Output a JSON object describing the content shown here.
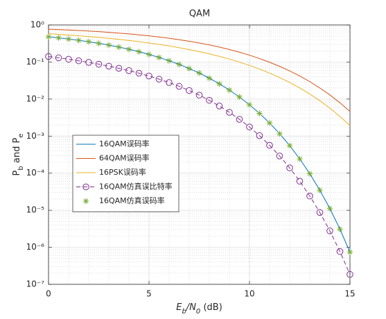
{
  "chart_data": {
    "type": "line",
    "title": "QAM",
    "xlabel": "Eb/N0 (dB)",
    "ylabel": "Pb and Pe",
    "log_y": true,
    "grid": true,
    "minor_grid": true,
    "legend": "west",
    "x": [
      0,
      0.5,
      1,
      1.5,
      2,
      2.5,
      3,
      3.5,
      4,
      4.5,
      5,
      5.5,
      6,
      6.5,
      7,
      7.5,
      8,
      8.5,
      9,
      9.5,
      10,
      10.5,
      11,
      11.5,
      12,
      12.5,
      13,
      13.5,
      14,
      14.5,
      15
    ],
    "xlim": [
      0,
      15
    ],
    "xticks": [
      0,
      5,
      10,
      15
    ],
    "ylim": [
      1e-07,
      1
    ],
    "yticks": [
      {
        "value": 1e-07,
        "label": "10⁻⁷"
      },
      {
        "value": 1e-06,
        "label": "10⁻⁶"
      },
      {
        "value": 1e-05,
        "label": "10⁻⁵"
      },
      {
        "value": 0.0001,
        "label": "10⁻⁴"
      },
      {
        "value": 0.001,
        "label": "10⁻³"
      },
      {
        "value": 0.01,
        "label": "10⁻²"
      },
      {
        "value": 0.1,
        "label": "10⁻¹"
      },
      {
        "value": 1,
        "label": "10⁰"
      }
    ],
    "series": [
      {
        "name": "16QAM误码率",
        "color": "#0072BD",
        "line": "solid",
        "marker": "none",
        "values": [
          0.479,
          0.449,
          0.417,
          0.385,
          0.352,
          0.319,
          0.286,
          0.253,
          0.221,
          0.19,
          0.16,
          0.133,
          0.1085,
          0.0863,
          0.0667,
          0.0504,
          0.0366,
          0.0258,
          0.0175,
          0.01137,
          0.00701,
          0.0041,
          0.00226,
          0.00116,
          0.000555,
          0.000243,
          9.69e-05,
          3.48e-05,
          1.11e-05,
          3.09e-06,
          7.38e-07
        ]
      },
      {
        "name": "64QAM误码率",
        "color": "#D95319",
        "line": "solid",
        "marker": "none",
        "values": [
          0.769,
          0.75,
          0.73,
          0.708,
          0.685,
          0.66,
          0.633,
          0.604,
          0.574,
          0.542,
          0.509,
          0.474,
          0.438,
          0.401,
          0.364,
          0.326,
          0.289,
          0.253,
          0.218,
          0.184,
          0.153,
          0.124,
          0.0986,
          0.0765,
          0.0575,
          0.0419,
          0.0295,
          0.0199,
          0.0129,
          0.00795,
          0.00463
        ]
      },
      {
        "name": "16PSK误码率",
        "color": "#EDB120",
        "line": "solid",
        "marker": "none",
        "values": [
          0.581,
          0.559,
          0.536,
          0.512,
          0.487,
          0.462,
          0.436,
          0.409,
          0.382,
          0.354,
          0.326,
          0.299,
          0.271,
          0.244,
          0.217,
          0.191,
          0.166,
          0.142,
          0.12,
          0.0994,
          0.081,
          0.0646,
          0.0502,
          0.0381,
          0.028,
          0.02,
          0.0137,
          0.00903,
          0.00568,
          0.0034,
          0.00192
        ]
      },
      {
        "name": "16QAM仿真误比特率",
        "color": "#7E2F8E",
        "line": "dashed",
        "marker": "circle",
        "values": [
          0.141,
          0.13,
          0.119,
          0.108,
          0.0978,
          0.0875,
          0.0774,
          0.0678,
          0.0586,
          0.05,
          0.0419,
          0.0345,
          0.0279,
          0.0221,
          0.017,
          0.0128,
          0.00925,
          0.0065,
          0.00439,
          0.00284,
          0.00176,
          0.00103,
          0.000565,
          0.000291,
          0.000139,
          6.08e-05,
          2.42e-05,
          8.7e-06,
          2.77e-06,
          7.7e-07,
          1.85e-07
        ]
      },
      {
        "name": "16QAM仿真误码率",
        "color": "#77AC30",
        "line": "none",
        "marker": "asterisk",
        "values": [
          0.479,
          0.449,
          0.417,
          0.385,
          0.352,
          0.319,
          0.286,
          0.253,
          0.221,
          0.19,
          0.16,
          0.133,
          0.1085,
          0.0863,
          0.0667,
          0.0504,
          0.0366,
          0.0258,
          0.0175,
          0.01137,
          0.00701,
          0.0041,
          0.00226,
          0.00116,
          0.000555,
          0.000243,
          9.69e-05,
          3.48e-05,
          1.11e-05,
          3.09e-06,
          7.38e-07
        ]
      }
    ]
  }
}
